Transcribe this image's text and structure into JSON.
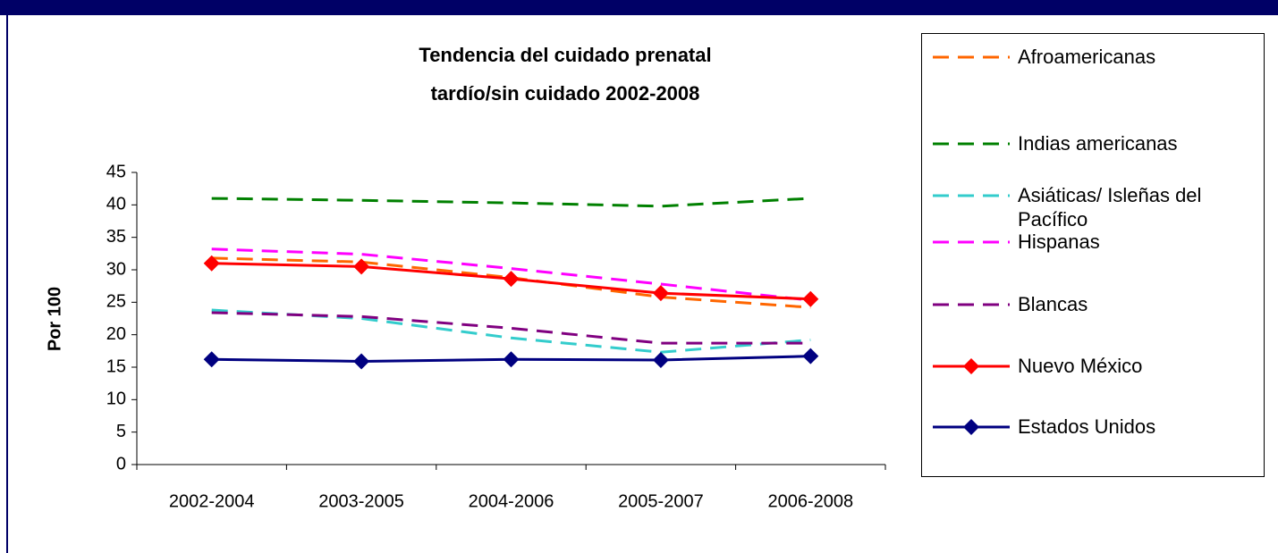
{
  "chart_data": {
    "type": "line",
    "title": "Tendencia del cuidado prenatal\ntardío/sin cuidado 2002-2008",
    "y_label": "Por 100",
    "categories": [
      "2002-2004",
      "2003-2005",
      "2004-2006",
      "2005-2007",
      "2006-2008"
    ],
    "ylim": [
      0,
      45
    ],
    "yticks": [
      0,
      5,
      10,
      15,
      20,
      25,
      30,
      35,
      40,
      45
    ],
    "series": [
      {
        "name": "Afroamericanas",
        "color": "#ff6600",
        "dashed": true,
        "values": [
          31.8,
          31.2,
          28.8,
          25.8,
          24.2
        ]
      },
      {
        "name": "Indias americanas",
        "color": "#008000",
        "dashed": true,
        "values": [
          41,
          40.7,
          40.3,
          39.8,
          41
        ]
      },
      {
        "name": "Asiáticas/ Isleñas del\nPacífico",
        "color": "#33cccc",
        "dashed": true,
        "values": [
          23.8,
          22.5,
          19.5,
          17.3,
          19.2
        ]
      },
      {
        "name": "Hispanas",
        "color": "#ff00ff",
        "dashed": true,
        "values": [
          33.2,
          32.4,
          30.2,
          27.8,
          25.3
        ]
      },
      {
        "name": "Blancas",
        "color": "#800080",
        "dashed": true,
        "values": [
          23.4,
          22.8,
          21,
          18.7,
          18.7
        ]
      },
      {
        "name": "Nuevo México",
        "color": "#ff0000",
        "dashed": false,
        "marker": "diamond",
        "values": [
          31,
          30.5,
          28.6,
          26.4,
          25.5
        ]
      },
      {
        "name": "Estados Unidos",
        "color": "#000080",
        "dashed": false,
        "marker": "diamond",
        "values": [
          16.2,
          15.9,
          16.2,
          16.1,
          16.7
        ]
      }
    ]
  }
}
